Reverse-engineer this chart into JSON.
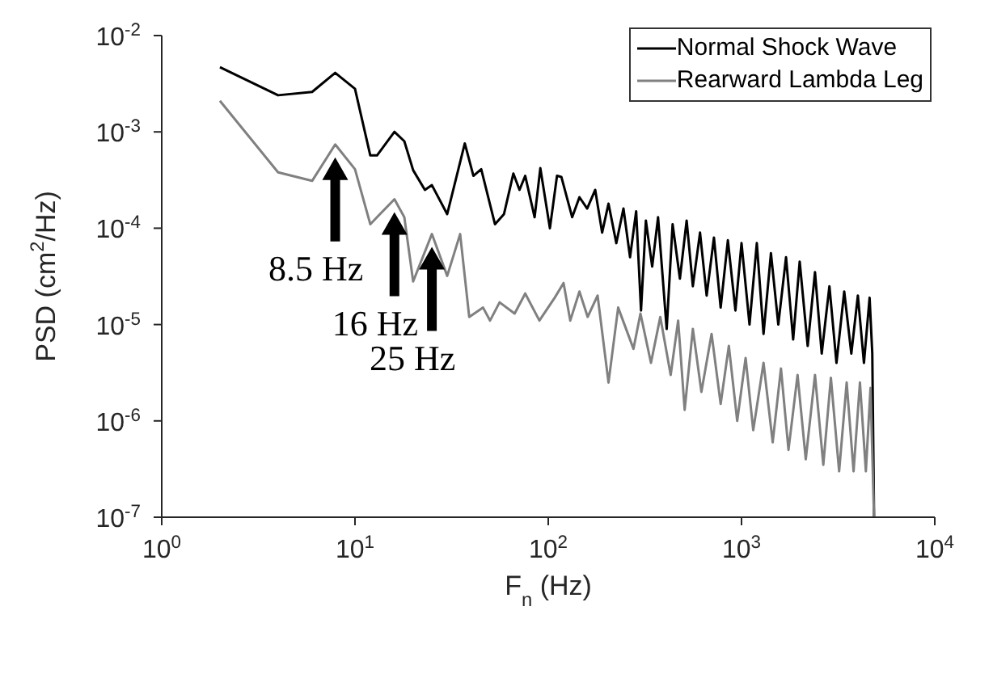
{
  "chart_data": {
    "type": "line",
    "xlabel": "F$_{n}$ (Hz)",
    "ylabel": "PSD (cm$^{2}$/Hz)",
    "log": "xy",
    "grid": false,
    "legend": "top right",
    "marker": "none",
    "line_style": "solid",
    "xlim": [
      1,
      10000
    ],
    "xticks": [
      {
        "value": 1,
        "label": "10$^{0}$"
      },
      {
        "value": 10,
        "label": "10$^{1}$"
      },
      {
        "value": 100,
        "label": "10$^{2}$"
      },
      {
        "value": 1000,
        "label": "10$^{3}$"
      },
      {
        "value": 10000,
        "label": "10$^{4}$"
      }
    ],
    "ylim": [
      1e-07,
      0.01
    ],
    "yticks": [
      {
        "value": 1e-07,
        "label": "10$^{-7}$"
      },
      {
        "value": 1e-06,
        "label": "10$^{-6}$"
      },
      {
        "value": 1e-05,
        "label": "10$^{-5}$"
      },
      {
        "value": 0.0001,
        "label": "10$^{-4}$"
      },
      {
        "value": 0.001,
        "label": "10$^{-3}$"
      },
      {
        "value": 0.01,
        "label": "10$^{-2}$"
      }
    ],
    "series": [
      {
        "name": "Normal Shock Wave",
        "color": "#000000",
        "x": [
          2,
          4,
          6,
          7.9,
          10,
          12,
          13,
          16,
          18,
          20,
          23,
          25,
          30,
          37,
          41,
          45,
          53,
          59,
          66,
          71,
          76,
          85,
          91,
          102,
          111,
          117,
          133,
          145,
          159,
          175,
          190,
          205,
          225,
          245,
          265,
          285,
          302,
          320,
          345,
          370,
          410,
          440,
          480,
          520,
          560,
          610,
          660,
          720,
          780,
          850,
          930,
          1000,
          1100,
          1200,
          1300,
          1420,
          1550,
          1700,
          1850,
          2000,
          2200,
          2400,
          2600,
          2850,
          3100,
          3400,
          3700,
          4000,
          4300,
          4600,
          4750,
          4850
        ],
        "values": [
          0.0047,
          0.0024,
          0.0026,
          0.0041,
          0.0028,
          0.00057,
          0.00057,
          0.001,
          0.0008,
          0.0004,
          0.00025,
          0.00028,
          0.00014,
          0.00076,
          0.00035,
          0.00041,
          0.00011,
          0.00014,
          0.00037,
          0.00025,
          0.00035,
          0.00013,
          0.00042,
          0.0001,
          0.00035,
          0.00034,
          0.00013,
          0.00021,
          0.00016,
          0.00025,
          9e-05,
          0.00018,
          7e-05,
          0.00016,
          5e-05,
          0.00015,
          1.4e-05,
          0.00012,
          4e-05,
          0.00013,
          9e-06,
          0.00011,
          3e-05,
          0.00012,
          2.5e-05,
          9e-05,
          2e-05,
          8e-05,
          1.5e-05,
          7.5e-05,
          1.4e-05,
          7e-05,
          1e-05,
          7e-05,
          8e-06,
          5.5e-05,
          1e-05,
          5e-05,
          7e-06,
          4.5e-05,
          6e-06,
          3.5e-05,
          5e-06,
          2.5e-05,
          4e-06,
          2.2e-05,
          5e-06,
          2e-05,
          4e-06,
          1.9e-05,
          5e-06,
          1e-07
        ]
      },
      {
        "name": "Rearward Lambda Leg",
        "color": "#808080",
        "x": [
          2,
          4,
          6,
          7.9,
          10,
          12,
          13,
          16,
          18,
          20,
          25,
          30,
          35,
          39,
          46,
          50,
          56,
          67,
          76,
          90,
          108,
          120,
          130,
          145,
          160,
          180,
          205,
          230,
          276,
          300,
          340,
          380,
          430,
          470,
          508,
          560,
          620,
          700,
          780,
          860,
          950,
          1050,
          1150,
          1300,
          1450,
          1600,
          1750,
          1950,
          2150,
          2400,
          2650,
          2900,
          3200,
          3500,
          3800,
          4100,
          4400,
          4650,
          4850
        ],
        "values": [
          0.0021,
          0.00038,
          0.00031,
          0.00074,
          0.00041,
          0.00011,
          0.00013,
          0.0002,
          0.00013,
          2.8e-05,
          8.7e-05,
          3.2e-05,
          8.7e-05,
          1.2e-05,
          1.5e-05,
          1.1e-05,
          1.7e-05,
          1.3e-05,
          2.1e-05,
          1.1e-05,
          1.9e-05,
          2.7e-05,
          1.1e-05,
          2.2e-05,
          1.2e-05,
          2e-05,
          2.5e-06,
          1.5e-05,
          5.6e-06,
          1.3e-05,
          4e-06,
          1.2e-05,
          3e-06,
          1.1e-05,
          1.3e-06,
          9e-06,
          2e-06,
          8e-06,
          1.5e-06,
          6e-06,
          1e-06,
          4.5e-06,
          8e-07,
          4e-06,
          6e-07,
          3.5e-06,
          5e-07,
          3e-06,
          4e-07,
          3e-06,
          3.5e-07,
          2.8e-06,
          3e-07,
          2.5e-06,
          3e-07,
          2.5e-06,
          3e-07,
          2.2e-06,
          1e-07
        ]
      }
    ],
    "annotations": [
      {
        "text": "8.5 Hz",
        "x": 7.9,
        "y": 0.00074
      },
      {
        "text": "16 Hz",
        "x": 16,
        "y": 0.0002
      },
      {
        "text": "25 Hz",
        "x": 25,
        "y": 8.7e-05
      }
    ]
  }
}
